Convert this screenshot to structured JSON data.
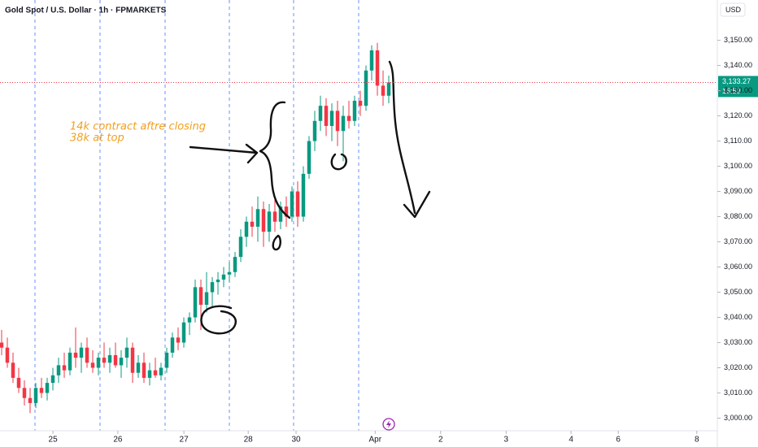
{
  "chart_data": {
    "type": "candlestick",
    "title": "Gold Spot / U.S. Dollar · 1h · FPMARKETS",
    "currency": "USD",
    "up_color": "#089981",
    "down_color": "#f23645",
    "annotations": [
      "14k contract aftre closing",
      "38k at top"
    ],
    "last_price": {
      "value": 3133.27,
      "label": "3,133.27"
    },
    "countdown": "16:59",
    "open": [
      3030,
      3028,
      3022,
      3016,
      3012,
      3008,
      3006,
      3012,
      3010,
      3014,
      3017,
      3021,
      3019,
      3026,
      3024,
      3028,
      3022,
      3020,
      3024,
      3022,
      3025,
      3021,
      3024,
      3028,
      3018,
      3022,
      3016,
      3019,
      3017,
      3020,
      3026,
      3032,
      3030,
      3038,
      3040,
      3052,
      3045,
      3050,
      3054,
      3055,
      3057,
      3058,
      3064,
      3072,
      3078,
      3076,
      3083,
      3074,
      3082,
      3078,
      3084,
      3080,
      3090,
      3080,
      3097,
      3110,
      3118,
      3124,
      3116,
      3122,
      3114,
      3120,
      3118,
      3126,
      3124,
      3138,
      3146,
      3132,
      3128
    ],
    "high": [
      3035,
      3032,
      3026,
      3020,
      3015,
      3012,
      3014,
      3016,
      3016,
      3020,
      3024,
      3026,
      3028,
      3036,
      3030,
      3032,
      3027,
      3026,
      3030,
      3028,
      3030,
      3027,
      3032,
      3030,
      3025,
      3026,
      3022,
      3024,
      3022,
      3028,
      3034,
      3036,
      3040,
      3042,
      3055,
      3055,
      3058,
      3056,
      3058,
      3060,
      3062,
      3066,
      3075,
      3080,
      3084,
      3088,
      3086,
      3085,
      3088,
      3086,
      3088,
      3092,
      3094,
      3100,
      3112,
      3122,
      3128,
      3127,
      3125,
      3126,
      3124,
      3126,
      3128,
      3130,
      3140,
      3148,
      3149,
      3138,
      3136
    ],
    "low": [
      3025,
      3020,
      3014,
      3010,
      3005,
      3002,
      3004,
      3008,
      3007,
      3011,
      3014,
      3016,
      3017,
      3020,
      3018,
      3020,
      3018,
      3017,
      3020,
      3018,
      3020,
      3016,
      3020,
      3014,
      3016,
      3014,
      3013,
      3016,
      3015,
      3018,
      3024,
      3027,
      3028,
      3033,
      3038,
      3035,
      3042,
      3044,
      3049,
      3052,
      3054,
      3056,
      3062,
      3068,
      3072,
      3070,
      3068,
      3070,
      3074,
      3075,
      3076,
      3078,
      3076,
      3078,
      3095,
      3106,
      3114,
      3112,
      3110,
      3108,
      3102,
      3115,
      3116,
      3120,
      3122,
      3134,
      3128,
      3124,
      3125
    ],
    "close": [
      3028,
      3022,
      3016,
      3012,
      3008,
      3006,
      3012,
      3010,
      3014,
      3017,
      3021,
      3019,
      3026,
      3024,
      3028,
      3022,
      3020,
      3024,
      3022,
      3025,
      3021,
      3024,
      3028,
      3018,
      3022,
      3016,
      3019,
      3017,
      3020,
      3026,
      3032,
      3030,
      3038,
      3040,
      3052,
      3045,
      3050,
      3054,
      3055,
      3057,
      3058,
      3064,
      3072,
      3078,
      3076,
      3083,
      3074,
      3082,
      3078,
      3084,
      3080,
      3090,
      3080,
      3097,
      3110,
      3118,
      3124,
      3116,
      3122,
      3114,
      3120,
      3118,
      3126,
      3124,
      3138,
      3146,
      3132,
      3128,
      3133.27
    ],
    "xlim": [
      0,
      126
    ],
    "xticks": [
      {
        "value": 9.3,
        "label": "25"
      },
      {
        "value": 20.7,
        "label": "26"
      },
      {
        "value": 32.3,
        "label": "27"
      },
      {
        "value": 43.6,
        "label": "28"
      },
      {
        "value": 52,
        "label": "30"
      },
      {
        "value": 65.9,
        "label": "Apr"
      },
      {
        "value": 77.4,
        "label": "2"
      },
      {
        "value": 88.9,
        "label": "3"
      },
      {
        "value": 100.3,
        "label": "4"
      },
      {
        "value": 108.6,
        "label": "6"
      },
      {
        "value": 122.4,
        "label": "8"
      }
    ],
    "ylim": [
      2995,
      3166
    ],
    "yticks": [
      {
        "value": 3000,
        "label": "3,000.00"
      },
      {
        "value": 3010,
        "label": "3,010.00"
      },
      {
        "value": 3020,
        "label": "3,020.00"
      },
      {
        "value": 3030,
        "label": "3,030.00"
      },
      {
        "value": 3040,
        "label": "3,040.00"
      },
      {
        "value": 3050,
        "label": "3,050.00"
      },
      {
        "value": 3060,
        "label": "3,060.00"
      },
      {
        "value": 3070,
        "label": "3,070.00"
      },
      {
        "value": 3080,
        "label": "3,080.00"
      },
      {
        "value": 3090,
        "label": "3,090.00"
      },
      {
        "value": 3100,
        "label": "3,100.00"
      },
      {
        "value": 3110,
        "label": "3,110.00"
      },
      {
        "value": 3120,
        "label": "3,120.00"
      },
      {
        "value": 3130,
        "label": "3,130.00"
      },
      {
        "value": 3140,
        "label": "3,140.00"
      },
      {
        "value": 3150,
        "label": "3,150.00"
      }
    ]
  }
}
